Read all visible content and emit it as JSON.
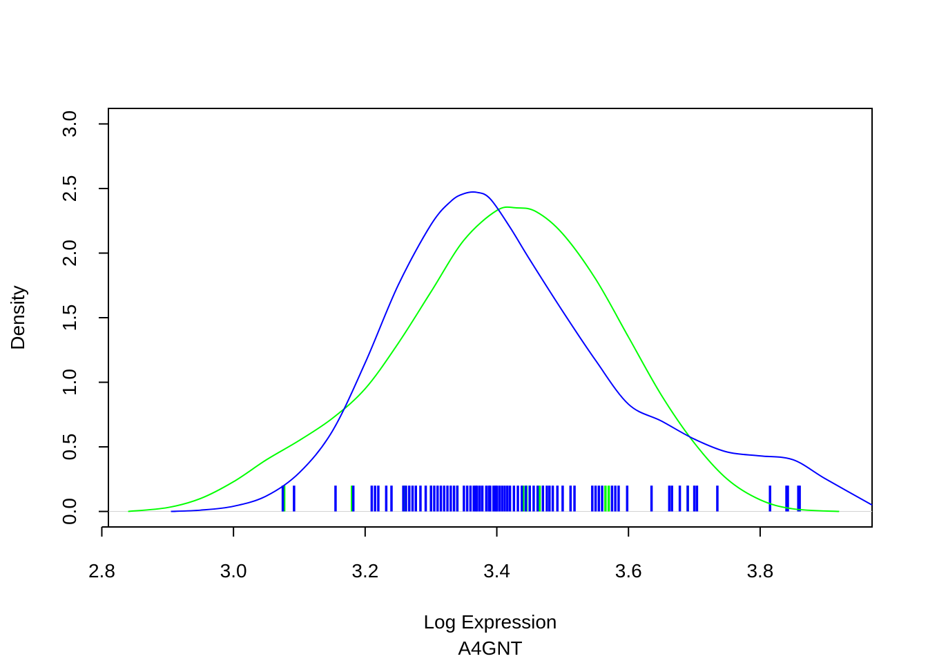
{
  "chart_data": {
    "type": "line",
    "title": "",
    "xlabel": "Log Expression",
    "xlabel_sub": "A4GNT",
    "ylabel": "Density",
    "xlim": [
      2.81,
      3.97
    ],
    "ylim": [
      -0.12,
      3.12
    ],
    "x_ticks": [
      "2.8",
      "3.0",
      "3.2",
      "3.4",
      "3.6",
      "3.8"
    ],
    "y_ticks": [
      "0.0",
      "0.5",
      "1.0",
      "1.5",
      "2.0",
      "2.5",
      "3.0"
    ],
    "grid": false,
    "legend": "none",
    "baseline": 0,
    "series": [
      {
        "color": "#00ff00",
        "x": [
          2.84,
          2.9,
          2.95,
          3.0,
          3.05,
          3.1,
          3.15,
          3.2,
          3.25,
          3.3,
          3.35,
          3.4,
          3.43,
          3.46,
          3.5,
          3.55,
          3.6,
          3.65,
          3.7,
          3.75,
          3.8,
          3.85,
          3.92
        ],
        "y": [
          0.0,
          0.03,
          0.1,
          0.23,
          0.4,
          0.55,
          0.72,
          0.95,
          1.3,
          1.7,
          2.1,
          2.33,
          2.35,
          2.32,
          2.15,
          1.8,
          1.35,
          0.9,
          0.53,
          0.25,
          0.09,
          0.02,
          0.0
        ],
        "rug": [
          3.075,
          3.077,
          3.18,
          3.26,
          3.3,
          3.34,
          3.44,
          3.445,
          3.45,
          3.465,
          3.47,
          3.565,
          3.57,
          3.69
        ]
      },
      {
        "color": "#0000ff",
        "x": [
          2.905,
          2.95,
          3.0,
          3.05,
          3.1,
          3.15,
          3.2,
          3.25,
          3.3,
          3.33,
          3.35,
          3.37,
          3.39,
          3.42,
          3.45,
          3.5,
          3.55,
          3.6,
          3.65,
          3.7,
          3.75,
          3.8,
          3.85,
          3.9,
          3.97
        ],
        "y": [
          0.0,
          0.01,
          0.04,
          0.12,
          0.3,
          0.62,
          1.15,
          1.75,
          2.22,
          2.4,
          2.46,
          2.47,
          2.42,
          2.2,
          1.95,
          1.55,
          1.17,
          0.83,
          0.7,
          0.56,
          0.46,
          0.43,
          0.4,
          0.25,
          0.05
        ],
        "rug": [
          3.075,
          3.092,
          3.155,
          3.182,
          3.21,
          3.215,
          3.22,
          3.232,
          3.24,
          3.258,
          3.262,
          3.267,
          3.272,
          3.277,
          3.284,
          3.292,
          3.3,
          3.305,
          3.31,
          3.315,
          3.32,
          3.325,
          3.33,
          3.335,
          3.34,
          3.35,
          3.355,
          3.36,
          3.365,
          3.368,
          3.37,
          3.374,
          3.378,
          3.384,
          3.388,
          3.39,
          3.395,
          3.398,
          3.4,
          3.404,
          3.408,
          3.412,
          3.416,
          3.42,
          3.426,
          3.432,
          3.438,
          3.444,
          3.45,
          3.456,
          3.462,
          3.47,
          3.476,
          3.48,
          3.485,
          3.492,
          3.5,
          3.512,
          3.518,
          3.545,
          3.55,
          3.555,
          3.56,
          3.575,
          3.58,
          3.585,
          3.598,
          3.635,
          3.662,
          3.666,
          3.678,
          3.69,
          3.7,
          3.704,
          3.735,
          3.815,
          3.84,
          3.842,
          3.858,
          3.86
        ]
      }
    ]
  }
}
